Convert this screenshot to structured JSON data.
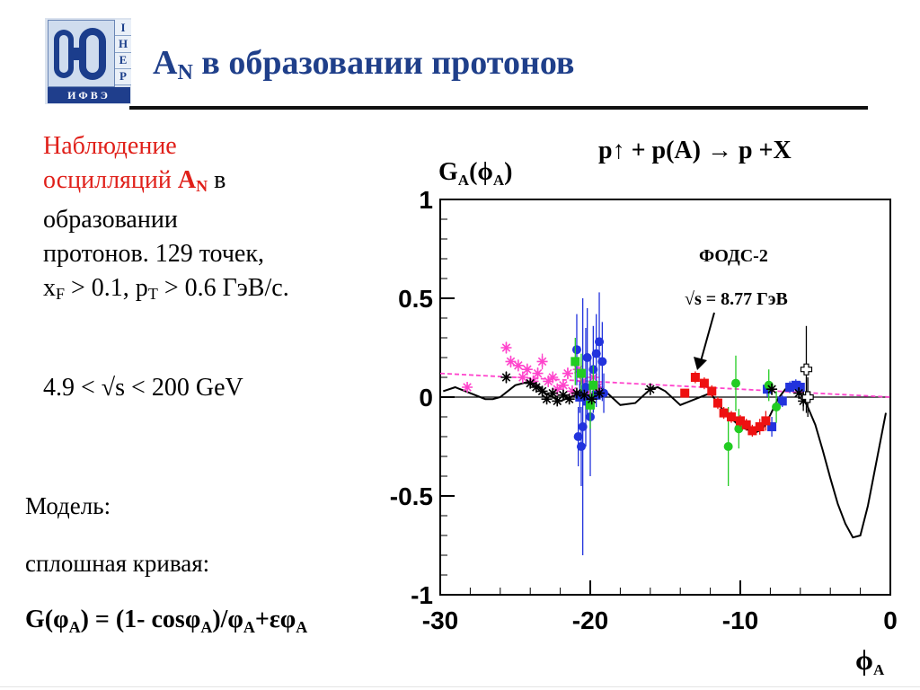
{
  "logo": {
    "side_letters": [
      "І",
      "Н",
      "Е",
      "Р"
    ],
    "bottom_text": "ИФВЭ"
  },
  "slide": {
    "title_main": "A",
    "title_sub": "N",
    "title_rest": " в образовании протонов"
  },
  "observation": {
    "line1": "Наблюдение",
    "line2_red": "осцилляций ",
    "line2_bold": "A",
    "line2_bold_sub": "N",
    "line2_rest": " в",
    "line3": "образовании",
    "line4": "протонов. 129 точек,",
    "line5_x": "x",
    "line5_x_sub": "F",
    "line5_mid": " > 0.1, p",
    "line5_p_sub": "T",
    "line5_rest": " > 0.6 ГэВ/с."
  },
  "energy_range": "4.9 < √s < 200 GeV",
  "model": {
    "label": "Модель:",
    "curve_label": "сплошная кривая:",
    "formula_a": "G(φ",
    "formula_a_sub": "A",
    "formula_b": ") = (1- cosφ",
    "formula_b_sub": "A",
    "formula_c": ")/φ",
    "formula_c_sub": "A",
    "formula_d": "+εφ",
    "formula_d_sub": "A"
  },
  "reaction": "p↑ + p(A) → p +X",
  "annotation": {
    "experiment": "ФОДС-2",
    "energy": "√s = 8.77 ГэВ"
  },
  "chart_data": {
    "type": "scatter",
    "ytitle_main": "G",
    "ytitle_sub": "A",
    "ytitle_paren": "(ϕ",
    "ytitle_paren_sub": "A",
    "ytitle_close": ")",
    "xtitle_main": "ϕ",
    "xtitle_sub": "A",
    "xlim": [
      -30,
      0
    ],
    "ylim": [
      -1,
      1
    ],
    "xticks": [
      "-30",
      "-20",
      "-10",
      "0"
    ],
    "yticks": [
      "1",
      "0.5",
      "0",
      "-0.5",
      "-1"
    ],
    "model_curve": {
      "color": "#000000",
      "x": [
        -29.8,
        -29,
        -28,
        -27,
        -26.5,
        -26,
        -25,
        -24,
        -23.5,
        -23,
        -22,
        -21,
        -20,
        -19.5,
        -19,
        -18,
        -17,
        -16,
        -15.5,
        -15,
        -14,
        -13,
        -12,
        -11,
        -10,
        -9,
        -8.5,
        -8,
        -7.5,
        -7,
        -6.5,
        -6,
        -5.5,
        -5,
        -4.5,
        -4,
        -3.5,
        -3,
        -2.5,
        -2,
        -1.5,
        -0.3
      ],
      "y": [
        0.03,
        0.05,
        0.02,
        -0.01,
        -0.01,
        0.0,
        0.06,
        0.08,
        0.06,
        0.02,
        -0.02,
        0.01,
        0.06,
        0.06,
        0.03,
        -0.04,
        -0.03,
        0.04,
        0.05,
        0.03,
        -0.04,
        -0.01,
        0.02,
        -0.08,
        -0.15,
        -0.18,
        -0.16,
        -0.09,
        -0.01,
        0.04,
        0.05,
        0.02,
        -0.05,
        -0.14,
        -0.27,
        -0.41,
        -0.54,
        -0.64,
        -0.71,
        -0.7,
        -0.55,
        -0.08
      ]
    },
    "fit_line": {
      "color": "#ff44cc",
      "x": [
        -30,
        0
      ],
      "y": [
        0.12,
        0.0
      ]
    },
    "series": [
      {
        "color": "#ff44cc",
        "marker": "star",
        "points": [
          [
            -28.2,
            0.05,
            0.02
          ],
          [
            -25.6,
            0.25,
            0.03
          ],
          [
            -25.3,
            0.18,
            0.03
          ],
          [
            -24.8,
            0.16,
            0.03
          ],
          [
            -24.5,
            0.1,
            0.03
          ],
          [
            -24.2,
            0.14,
            0.03
          ],
          [
            -23.8,
            0.08,
            0.03
          ],
          [
            -23.5,
            0.12,
            0.03
          ],
          [
            -23.2,
            0.18,
            0.04
          ],
          [
            -22.8,
            0.08,
            0.03
          ],
          [
            -22.5,
            0.1,
            0.03
          ],
          [
            -22.2,
            0.04,
            0.03
          ],
          [
            -21.8,
            0.06,
            0.03
          ],
          [
            -21.5,
            0.12,
            0.03
          ],
          [
            -21.2,
            0.03,
            0.03
          ],
          [
            -20.8,
            0.14,
            0.04
          ],
          [
            -20.5,
            0.08,
            0.03
          ],
          [
            -20.2,
            0.02,
            0.03
          ],
          [
            -19.8,
            0.1,
            0.04
          ],
          [
            -19.5,
            0.05,
            0.03
          ]
        ]
      },
      {
        "color": "#2233dd",
        "marker": "circle",
        "points": [
          [
            -20.8,
            -0.2,
            0.15
          ],
          [
            -20.6,
            -0.25,
            0.2
          ],
          [
            -20.5,
            -0.15,
            0.65
          ],
          [
            -20.3,
            0.05,
            0.3
          ],
          [
            -20.2,
            0.2,
            0.25
          ],
          [
            -20.0,
            -0.1,
            0.3
          ],
          [
            -19.8,
            0.14,
            0.22
          ],
          [
            -19.6,
            0.22,
            0.2
          ],
          [
            -19.4,
            0.28,
            0.25
          ],
          [
            -19.2,
            0.18,
            0.2
          ],
          [
            -20.9,
            0.24,
            0.18
          ],
          [
            -19.1,
            0.02,
            0.1
          ]
        ]
      },
      {
        "color": "#2233dd",
        "marker": "square",
        "points": [
          [
            -20.7,
            0.0,
            0.08
          ],
          [
            -20.2,
            -0.02,
            0.08
          ],
          [
            -19.6,
            0.01,
            0.06
          ],
          [
            -8.2,
            0.04,
            0.04
          ],
          [
            -7.9,
            -0.15,
            0.05
          ],
          [
            -7.2,
            -0.02,
            0.03
          ],
          [
            -6.7,
            0.05,
            0.03
          ],
          [
            -6.3,
            0.06,
            0.03
          ],
          [
            -6.0,
            0.05,
            0.03
          ]
        ]
      },
      {
        "color": "#22cc22",
        "marker": "square",
        "points": [
          [
            -21.0,
            0.18,
            0.12
          ],
          [
            -20.6,
            0.12,
            0.1
          ],
          [
            -20.0,
            -0.04,
            0.12
          ],
          [
            -19.8,
            0.06,
            0.1
          ]
        ]
      },
      {
        "color": "#22cc22",
        "marker": "circle",
        "points": [
          [
            -10.8,
            -0.25,
            0.2
          ],
          [
            -10.3,
            0.07,
            0.14
          ],
          [
            -10.1,
            -0.16,
            0.1
          ],
          [
            -8.1,
            0.06,
            0.08
          ],
          [
            -7.6,
            -0.05,
            0.08
          ]
        ]
      },
      {
        "color": "#ee1111",
        "marker": "square",
        "points": [
          [
            -13.7,
            0.02,
            0.02
          ],
          [
            -13.0,
            0.1,
            0.03
          ],
          [
            -12.4,
            0.07,
            0.03
          ],
          [
            -11.9,
            0.03,
            0.03
          ],
          [
            -11.5,
            -0.03,
            0.03
          ],
          [
            -11.1,
            -0.08,
            0.03
          ],
          [
            -10.6,
            -0.1,
            0.03
          ],
          [
            -10.0,
            -0.12,
            0.03
          ],
          [
            -9.6,
            -0.14,
            0.03
          ],
          [
            -9.2,
            -0.17,
            0.03
          ],
          [
            -8.7,
            -0.15,
            0.04
          ],
          [
            -8.3,
            -0.12,
            0.05
          ]
        ]
      },
      {
        "color": "#000000",
        "marker": "star",
        "points": [
          [
            -25.6,
            0.1,
            0.03
          ],
          [
            -24.0,
            0.07,
            0.02
          ],
          [
            -23.6,
            0.05,
            0.02
          ],
          [
            -23.2,
            0.03,
            0.02
          ],
          [
            -22.9,
            -0.01,
            0.02
          ],
          [
            -22.5,
            0.02,
            0.02
          ],
          [
            -22.2,
            -0.02,
            0.02
          ],
          [
            -21.8,
            0.01,
            0.02
          ],
          [
            -21.4,
            -0.01,
            0.02
          ],
          [
            -20.9,
            0.02,
            0.02
          ],
          [
            -20.4,
            0.01,
            0.02
          ],
          [
            -19.9,
            -0.01,
            0.02
          ],
          [
            -19.4,
            0.02,
            0.02
          ],
          [
            -16.0,
            0.04,
            0.03
          ],
          [
            -7.9,
            0.04,
            0.03
          ],
          [
            -6.1,
            0.02,
            0.03
          ],
          [
            -5.8,
            -0.02,
            0.05
          ]
        ]
      },
      {
        "color": "#000000",
        "marker": "open-cross",
        "points": [
          [
            -5.6,
            0.14,
            0.22
          ],
          [
            -5.5,
            0.0,
            0.1
          ]
        ]
      }
    ]
  }
}
